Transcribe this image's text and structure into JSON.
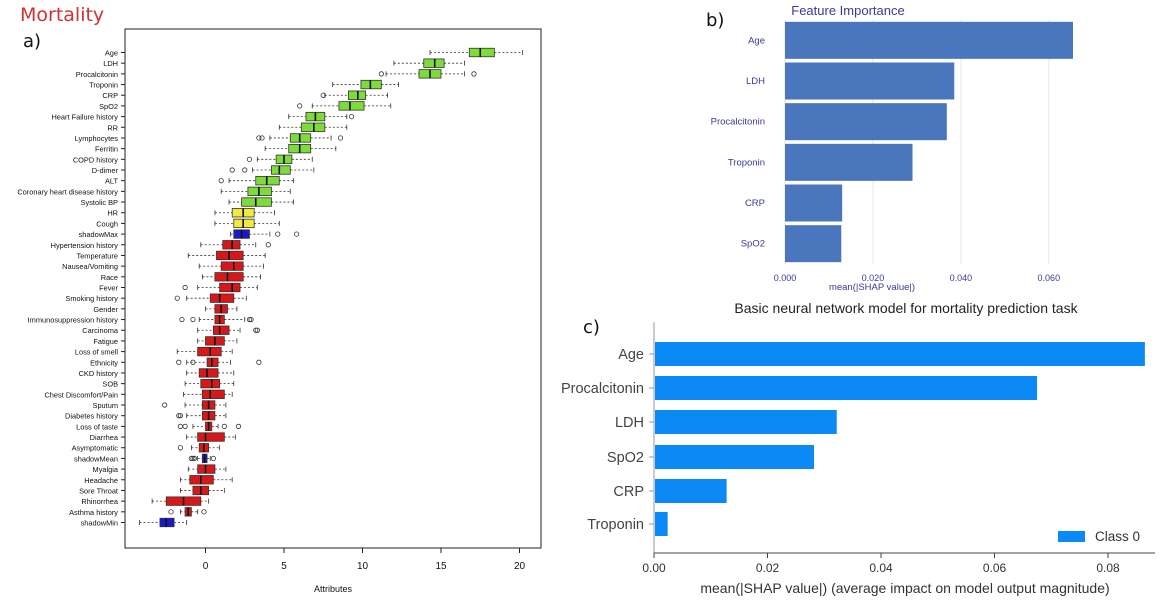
{
  "page": {
    "title": "Mortality"
  },
  "panels": {
    "a": "a)",
    "b": "b)",
    "c": "c)"
  },
  "chart_data": [
    {
      "type": "boxplot",
      "xlabel": "Attributes",
      "xlim": [
        -4,
        21
      ],
      "xticks": [
        0,
        5,
        10,
        15,
        20
      ],
      "colors": {
        "confirmed": "#7ddc3a",
        "tentative": "#f2ea3e",
        "rejected": "#d81818",
        "shadow": "#1a1acc"
      },
      "series": [
        {
          "label": "Age",
          "status": "confirmed",
          "whisker": [
            14.3,
            20.2
          ],
          "box": [
            16.8,
            18.4
          ],
          "median": 17.5,
          "outliers": []
        },
        {
          "label": "LDH",
          "status": "confirmed",
          "whisker": [
            12.0,
            16.5
          ],
          "box": [
            13.9,
            15.2
          ],
          "median": 14.6,
          "outliers": []
        },
        {
          "label": "Procalcitonin",
          "status": "confirmed",
          "whisker": [
            11.5,
            16.5
          ],
          "box": [
            13.6,
            15.0
          ],
          "median": 14.3,
          "outliers": [
            11.2,
            17.1
          ]
        },
        {
          "label": "Troponin",
          "status": "confirmed",
          "whisker": [
            8.1,
            12.3
          ],
          "box": [
            9.9,
            11.2
          ],
          "median": 10.5,
          "outliers": []
        },
        {
          "label": "CRP",
          "status": "confirmed",
          "whisker": [
            7.6,
            11.6
          ],
          "box": [
            9.1,
            10.2
          ],
          "median": 9.7,
          "outliers": [
            7.5
          ]
        },
        {
          "label": "SpO2",
          "status": "confirmed",
          "whisker": [
            6.8,
            11.8
          ],
          "box": [
            8.5,
            10.1
          ],
          "median": 9.2,
          "outliers": [
            6.0
          ]
        },
        {
          "label": "Heart Failure history",
          "status": "confirmed",
          "whisker": [
            5.3,
            9.0
          ],
          "box": [
            6.4,
            7.6
          ],
          "median": 7.0,
          "outliers": [
            9.3
          ]
        },
        {
          "label": "RR",
          "status": "confirmed",
          "whisker": [
            4.7,
            9.0
          ],
          "box": [
            6.1,
            7.6
          ],
          "median": 6.9,
          "outliers": []
        },
        {
          "label": "Lymphocytes",
          "status": "confirmed",
          "whisker": [
            4.1,
            8.0
          ],
          "box": [
            5.4,
            6.7
          ],
          "median": 6.0,
          "outliers": [
            3.4,
            3.6,
            8.6
          ]
        },
        {
          "label": "Ferritin",
          "status": "confirmed",
          "whisker": [
            3.8,
            8.3
          ],
          "box": [
            5.3,
            6.7
          ],
          "median": 6.0,
          "outliers": []
        },
        {
          "label": "COPD history",
          "status": "confirmed",
          "whisker": [
            3.3,
            6.8
          ],
          "box": [
            4.5,
            5.5
          ],
          "median": 5.0,
          "outliers": [
            2.8
          ]
        },
        {
          "label": "D-dimer",
          "status": "confirmed",
          "whisker": [
            3.0,
            6.9
          ],
          "box": [
            4.2,
            5.4
          ],
          "median": 4.7,
          "outliers": [
            1.7,
            2.5
          ]
        },
        {
          "label": "ALT",
          "status": "confirmed",
          "whisker": [
            1.5,
            5.6
          ],
          "box": [
            3.2,
            4.7
          ],
          "median": 3.9,
          "outliers": [
            1.0
          ]
        },
        {
          "label": "Coronary heart disease history",
          "status": "confirmed",
          "whisker": [
            1.0,
            5.4
          ],
          "box": [
            2.7,
            4.2
          ],
          "median": 3.4,
          "outliers": []
        },
        {
          "label": "Systolic BP",
          "status": "confirmed",
          "whisker": [
            1.5,
            5.6
          ],
          "box": [
            2.3,
            4.2
          ],
          "median": 3.2,
          "outliers": []
        },
        {
          "label": "HR",
          "status": "tentative",
          "whisker": [
            0.6,
            4.4
          ],
          "box": [
            1.7,
            3.1
          ],
          "median": 2.4,
          "outliers": []
        },
        {
          "label": "Cough",
          "status": "tentative",
          "whisker": [
            0.6,
            4.7
          ],
          "box": [
            1.8,
            3.1
          ],
          "median": 2.4,
          "outliers": []
        },
        {
          "label": "shadowMax",
          "status": "shadow",
          "whisker": [
            1.6,
            4.1
          ],
          "box": [
            1.8,
            2.8
          ],
          "median": 2.3,
          "outliers": [
            4.6,
            5.8
          ]
        },
        {
          "label": "Hypertension history",
          "status": "rejected",
          "whisker": [
            -0.3,
            3.2
          ],
          "box": [
            1.1,
            2.2
          ],
          "median": 1.7,
          "outliers": [
            4.0
          ]
        },
        {
          "label": "Temperature",
          "status": "rejected",
          "whisker": [
            -1.1,
            3.8
          ],
          "box": [
            0.7,
            2.4
          ],
          "median": 1.5,
          "outliers": []
        },
        {
          "label": "Nausea/Vomiting",
          "status": "rejected",
          "whisker": [
            -0.4,
            3.7
          ],
          "box": [
            1.0,
            2.4
          ],
          "median": 1.8,
          "outliers": []
        },
        {
          "label": "Race",
          "status": "rejected",
          "whisker": [
            -0.2,
            3.5
          ],
          "box": [
            0.6,
            2.4
          ],
          "median": 1.4,
          "outliers": []
        },
        {
          "label": "Fever",
          "status": "rejected",
          "whisker": [
            -0.5,
            3.3
          ],
          "box": [
            0.9,
            2.2
          ],
          "median": 1.7,
          "outliers": [
            -1.3
          ]
        },
        {
          "label": "Smoking history",
          "status": "rejected",
          "whisker": [
            -1.2,
            2.6
          ],
          "box": [
            0.3,
            1.8
          ],
          "median": 0.9,
          "outliers": [
            -1.8
          ]
        },
        {
          "label": "Gender",
          "status": "rejected",
          "whisker": [
            0.0,
            2.0
          ],
          "box": [
            0.6,
            1.4
          ],
          "median": 1.0,
          "outliers": []
        },
        {
          "label": "Immunosuppression history",
          "status": "rejected",
          "whisker": [
            -0.4,
            2.5
          ],
          "box": [
            0.6,
            1.2
          ],
          "median": 0.9,
          "outliers": [
            -1.5,
            -0.8,
            2.8,
            2.9
          ]
        },
        {
          "label": "Carcinoma",
          "status": "rejected",
          "whisker": [
            -0.5,
            2.2
          ],
          "box": [
            0.5,
            1.5
          ],
          "median": 0.9,
          "outliers": [
            3.2,
            3.3
          ]
        },
        {
          "label": "Fatigue",
          "status": "rejected",
          "whisker": [
            -0.5,
            2.0
          ],
          "box": [
            0.0,
            1.2
          ],
          "median": 0.6,
          "outliers": []
        },
        {
          "label": "Loss of smell",
          "status": "rejected",
          "whisker": [
            -1.8,
            1.7
          ],
          "box": [
            -0.5,
            1.0
          ],
          "median": 0.3,
          "outliers": []
        },
        {
          "label": "Ethnicity",
          "status": "rejected",
          "whisker": [
            -1.2,
            1.6
          ],
          "box": [
            0.1,
            0.8
          ],
          "median": 0.4,
          "outliers": [
            -1.7,
            -0.8,
            3.4
          ]
        },
        {
          "label": "CKD history",
          "status": "rejected",
          "whisker": [
            -1.2,
            1.8
          ],
          "box": [
            -0.4,
            0.8
          ],
          "median": 0.1,
          "outliers": []
        },
        {
          "label": "SOB",
          "status": "rejected",
          "whisker": [
            -1.3,
            1.8
          ],
          "box": [
            -0.3,
            0.9
          ],
          "median": 0.4,
          "outliers": []
        },
        {
          "label": "Chest Discomfort/Pain",
          "status": "rejected",
          "whisker": [
            -1.4,
            1.7
          ],
          "box": [
            -0.2,
            1.2
          ],
          "median": 0.3,
          "outliers": []
        },
        {
          "label": "Sputum",
          "status": "rejected",
          "whisker": [
            -1.3,
            1.3
          ],
          "box": [
            -0.2,
            0.6
          ],
          "median": 0.2,
          "outliers": [
            -2.6
          ]
        },
        {
          "label": "Diabetes history",
          "status": "rejected",
          "whisker": [
            -1.2,
            1.3
          ],
          "box": [
            -0.2,
            0.6
          ],
          "median": 0.2,
          "outliers": [
            -1.7,
            -1.6
          ]
        },
        {
          "label": "Loss of taste",
          "status": "rejected",
          "whisker": [
            -0.8,
            0.8
          ],
          "box": [
            0.0,
            0.4
          ],
          "median": 0.2,
          "outliers": [
            -1.6,
            -1.3,
            1.2,
            2.1
          ]
        },
        {
          "label": "Diarrhea",
          "status": "rejected",
          "whisker": [
            -1.2,
            1.9
          ],
          "box": [
            -0.5,
            1.2
          ],
          "median": 0.0,
          "outliers": []
        },
        {
          "label": "Asymptomatic",
          "status": "rejected",
          "whisker": [
            -0.9,
            0.9
          ],
          "box": [
            -0.4,
            0.2
          ],
          "median": -0.1,
          "outliers": [
            -1.6
          ]
        },
        {
          "label": "shadowMean",
          "status": "shadow",
          "whisker": [
            -0.5,
            0.3
          ],
          "box": [
            -0.2,
            0.1
          ],
          "median": -0.05,
          "outliers": [
            -0.9,
            -0.8,
            -0.7,
            0.5
          ]
        },
        {
          "label": "Myalgia",
          "status": "rejected",
          "whisker": [
            -1.1,
            1.3
          ],
          "box": [
            -0.5,
            0.6
          ],
          "median": 0.0,
          "outliers": []
        },
        {
          "label": "Headache",
          "status": "rejected",
          "whisker": [
            -1.6,
            1.7
          ],
          "box": [
            -1.0,
            0.5
          ],
          "median": -0.3,
          "outliers": []
        },
        {
          "label": "Sore Throat",
          "status": "rejected",
          "whisker": [
            -1.6,
            1.2
          ],
          "box": [
            -0.8,
            0.2
          ],
          "median": -0.3,
          "outliers": []
        },
        {
          "label": "Rhinorrhea",
          "status": "rejected",
          "whisker": [
            -3.4,
            0.2
          ],
          "box": [
            -2.5,
            -0.3
          ],
          "median": -1.4,
          "outliers": []
        },
        {
          "label": "Asthma history",
          "status": "rejected",
          "whisker": [
            -1.6,
            -0.5
          ],
          "box": [
            -1.3,
            -0.9
          ],
          "median": -1.1,
          "outliers": [
            -2.2,
            -0.1
          ]
        },
        {
          "label": "shadowMin",
          "status": "shadow",
          "whisker": [
            -4.2,
            -1.2
          ],
          "box": [
            -2.9,
            -2.0
          ],
          "median": -2.5,
          "outliers": []
        }
      ]
    },
    {
      "type": "bar",
      "orientation": "horizontal",
      "title": "Feature Importance",
      "xlabel": "mean(|SHAP value|)",
      "xlim": [
        0,
        0.0655
      ],
      "xticks": [
        "0.000",
        "0.020",
        "0.040",
        "0.060"
      ],
      "color": "#4a76be",
      "categories": [
        "Age",
        "LDH",
        "Procalcitonin",
        "Troponin",
        "CRP",
        "SpO2"
      ],
      "values": [
        0.0655,
        0.0385,
        0.0368,
        0.029,
        0.013,
        0.0128
      ]
    },
    {
      "type": "bar",
      "orientation": "horizontal",
      "title": "Basic neural network model for mortality prediction task",
      "xlabel": "mean(|SHAP value|) (average impact on model output magnitude)",
      "xlim": [
        0,
        0.09
      ],
      "xticks": [
        "0.00",
        "0.02",
        "0.04",
        "0.06",
        "0.08"
      ],
      "color": "#0b8af5",
      "legend": "Class 0",
      "categories": [
        "Age",
        "Procalcitonin",
        "LDH",
        "SpO2",
        "CRP",
        "Troponin"
      ],
      "values": [
        0.0865,
        0.0675,
        0.0322,
        0.0282,
        0.0128,
        0.0024
      ]
    }
  ]
}
